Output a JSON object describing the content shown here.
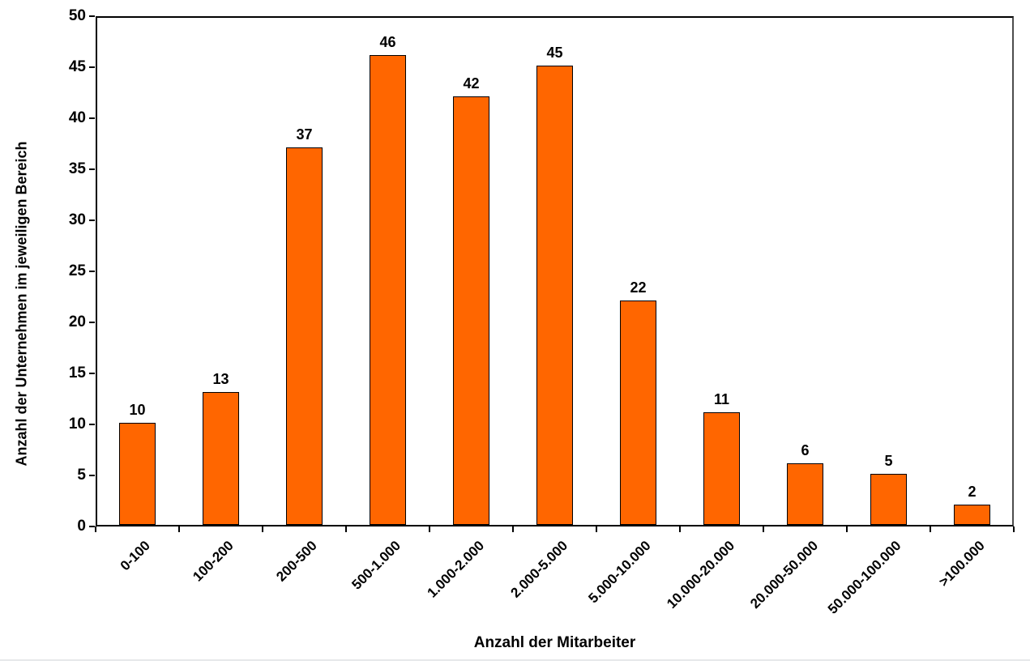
{
  "chart_data": {
    "type": "bar",
    "title": "",
    "categories": [
      "0-100",
      "100-200",
      "200-500",
      "500-1.000",
      "1.000-2.000",
      "2.000-5.000",
      "5.000-10.000",
      "10.000-20.000",
      "20.000-50.000",
      "50.000-100.000",
      ">100.000"
    ],
    "values": [
      10,
      13,
      37,
      46,
      42,
      45,
      22,
      11,
      6,
      5,
      2
    ],
    "xlabel": "Anzahl der Mitarbeiter",
    "ylabel": "Anzahl der Unternehmen im jeweiligen Bereich",
    "ylim": [
      0,
      50
    ],
    "yticks": [
      0,
      5,
      10,
      15,
      20,
      25,
      30,
      35,
      40,
      45,
      50
    ],
    "grid": false,
    "legend": false,
    "show_value_labels": true,
    "bar_color": "#FF6600",
    "bar_border_color": "#000000",
    "axis_color": "#000000",
    "background_color": "#FFFFFF"
  }
}
